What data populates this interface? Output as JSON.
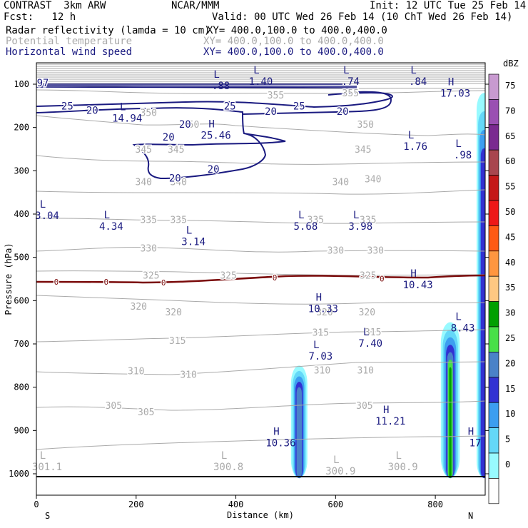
{
  "header": {
    "model": "CONTRAST  3km ARW",
    "org": "NCAR/MMM",
    "init": "Init: 12 UTC Tue 25 Feb 14",
    "fcst": "Fcst:   12 h",
    "valid": "Valid: 00 UTC Wed 26 Feb 14 (10 ChT Wed 26 Feb 14)",
    "fields": [
      {
        "name": "Radar reflectivity (lamda = 10 cm)",
        "xy": "XY= 400.0,100.0 to 400.0,400.0"
      },
      {
        "name": "Potential temperature",
        "xy": "XY= 400.0,100.0 to 400.0,400.0"
      },
      {
        "name": "Horizontal wind speed",
        "xy": "XY= 400.0,100.0 to 400.0,400.0"
      }
    ]
  },
  "chart_data": {
    "type": "cross-section",
    "xlabel": "Distance (km)",
    "ylabel": "Pressure (hPa)",
    "xlim": [
      0,
      900
    ],
    "ylim": [
      1010,
      55
    ],
    "x_ticks": [
      0,
      200,
      400,
      600,
      800
    ],
    "y_ticks": [
      100,
      200,
      300,
      400,
      500,
      600,
      700,
      800,
      900,
      1000
    ],
    "x_end_labels": {
      "left": "S",
      "right": "N"
    },
    "colorbar": {
      "unit": "dBZ",
      "levels": [
        "75",
        "70",
        "65",
        "60",
        "55",
        "50",
        "45",
        "40",
        "35",
        "30",
        "25",
        "20",
        "15",
        "10",
        "5",
        "0"
      ],
      "colors": [
        "#c89ad0",
        "#9a50b2",
        "#7a2a90",
        "#a8464e",
        "#c41818",
        "#ee1818",
        "#ff5a14",
        "#ff9640",
        "#ffc882",
        "#00a000",
        "#48e048",
        "#4a82c8",
        "#3232d2",
        "#3c9ef0",
        "#64d8f8",
        "#98faff",
        "#ffffff"
      ]
    },
    "theta_labels": [
      {
        "text": "355",
        "x": 480,
        "p": 125
      },
      {
        "text": "355",
        "x": 630,
        "p": 120
      },
      {
        "text": "350",
        "x": 225,
        "p": 165
      },
      {
        "text": "350",
        "x": 310,
        "p": 192
      },
      {
        "text": "350",
        "x": 660,
        "p": 192
      },
      {
        "text": "345",
        "x": 215,
        "p": 250
      },
      {
        "text": "345",
        "x": 280,
        "p": 250
      },
      {
        "text": "345",
        "x": 655,
        "p": 250
      },
      {
        "text": "340",
        "x": 215,
        "p": 325
      },
      {
        "text": "340",
        "x": 285,
        "p": 325
      },
      {
        "text": "340",
        "x": 610,
        "p": 325
      },
      {
        "text": "340",
        "x": 675,
        "p": 318
      },
      {
        "text": "335",
        "x": 225,
        "p": 412
      },
      {
        "text": "335",
        "x": 285,
        "p": 412
      },
      {
        "text": "335",
        "x": 560,
        "p": 412
      },
      {
        "text": "335",
        "x": 665,
        "p": 412
      },
      {
        "text": "330",
        "x": 225,
        "p": 478
      },
      {
        "text": "330",
        "x": 600,
        "p": 483
      },
      {
        "text": "330",
        "x": 680,
        "p": 483
      },
      {
        "text": "325",
        "x": 230,
        "p": 541
      },
      {
        "text": "325",
        "x": 385,
        "p": 541
      },
      {
        "text": "325",
        "x": 665,
        "p": 541
      },
      {
        "text": "320",
        "x": 205,
        "p": 613
      },
      {
        "text": "320",
        "x": 275,
        "p": 626
      },
      {
        "text": "320",
        "x": 578,
        "p": 626
      },
      {
        "text": "320",
        "x": 663,
        "p": 626
      },
      {
        "text": "315",
        "x": 283,
        "p": 692
      },
      {
        "text": "315",
        "x": 570,
        "p": 673
      },
      {
        "text": "315",
        "x": 675,
        "p": 672
      },
      {
        "text": "310",
        "x": 200,
        "p": 762
      },
      {
        "text": "310",
        "x": 305,
        "p": 770
      },
      {
        "text": "310",
        "x": 573,
        "p": 760
      },
      {
        "text": "310",
        "x": 660,
        "p": 760
      },
      {
        "text": "305",
        "x": 155,
        "p": 842
      },
      {
        "text": "305",
        "x": 220,
        "p": 857
      },
      {
        "text": "305",
        "x": 658,
        "p": 842
      }
    ],
    "wind_labels": [
      {
        "text": "25",
        "x": 62,
        "p": 150
      },
      {
        "text": "20",
        "x": 112,
        "p": 160
      },
      {
        "text": "25",
        "x": 388,
        "p": 150
      },
      {
        "text": "25",
        "x": 527,
        "p": 150
      },
      {
        "text": "20",
        "x": 470,
        "p": 163
      },
      {
        "text": "20",
        "x": 614,
        "p": 163
      },
      {
        "text": "20",
        "x": 298,
        "p": 192
      },
      {
        "text": "20",
        "x": 265,
        "p": 222
      },
      {
        "text": "20",
        "x": 355,
        "p": 296
      },
      {
        "text": "20",
        "x": 278,
        "p": 317
      },
      {
        "text": "97",
        "x": 10,
        "p": 97
      }
    ],
    "zero_labels": [
      {
        "text": "0",
        "x": 40,
        "p": 557
      },
      {
        "text": "0",
        "x": 140,
        "p": 557
      },
      {
        "text": "0",
        "x": 255,
        "p": 558
      },
      {
        "text": "0",
        "x": 478,
        "p": 547
      },
      {
        "text": "0",
        "x": 693,
        "p": 549
      }
    ],
    "extrema": [
      {
        "type": "L",
        "value": ".88",
        "x": 370,
        "p": 95
      },
      {
        "type": "L",
        "value": "1.40",
        "x": 450,
        "p": 85
      },
      {
        "type": "L",
        "value": ".74",
        "x": 630,
        "p": 85
      },
      {
        "type": "L",
        "value": ".84",
        "x": 765,
        "p": 85
      },
      {
        "type": "H",
        "value": "17.03",
        "x": 840,
        "p": 112
      },
      {
        "type": "L",
        "value": "14.94",
        "x": 182,
        "p": 170
      },
      {
        "type": "H",
        "value": "25.46",
        "x": 360,
        "p": 210
      },
      {
        "type": "L",
        "value": "1.76",
        "x": 760,
        "p": 235
      },
      {
        "type": "L",
        "value": ".98",
        "x": 855,
        "p": 255
      },
      {
        "type": "L",
        "value": "3.04",
        "x": 10,
        "p": 395
      },
      {
        "type": "L",
        "value": "4.34",
        "x": 150,
        "p": 420
      },
      {
        "type": "L",
        "value": "3.14",
        "x": 315,
        "p": 455
      },
      {
        "type": "L",
        "value": "5.68",
        "x": 540,
        "p": 420
      },
      {
        "type": "L",
        "value": "3.98",
        "x": 650,
        "p": 420
      },
      {
        "type": "H",
        "value": "10.43",
        "x": 765,
        "p": 555
      },
      {
        "type": "H",
        "value": "10.33",
        "x": 575,
        "p": 610
      },
      {
        "type": "L",
        "value": "8.43",
        "x": 855,
        "p": 655
      },
      {
        "type": "L",
        "value": "7.40",
        "x": 670,
        "p": 690
      },
      {
        "type": "L",
        "value": "7.03",
        "x": 570,
        "p": 720
      },
      {
        "type": "H",
        "value": "11.21",
        "x": 710,
        "p": 870
      },
      {
        "type": "H",
        "value": "10.36",
        "x": 490,
        "p": 920
      },
      {
        "type": "H",
        "value": "17",
        "x": 890,
        "p": 920
      },
      {
        "type": "L",
        "value": "301.1",
        "x": 20,
        "p": 975
      },
      {
        "type": "L",
        "value": "300.8",
        "x": 385,
        "p": 975
      },
      {
        "type": "L",
        "value": "300.9",
        "x": 610,
        "p": 985
      },
      {
        "type": "L",
        "value": "300.9",
        "x": 735,
        "p": 975
      }
    ],
    "reflectivity_cells": [
      {
        "x_center": 527,
        "p_top": 750,
        "p_bottom": 1010,
        "max_dbz": 20
      },
      {
        "x_center": 830,
        "p_top": 650,
        "p_bottom": 1010,
        "max_dbz": 30
      },
      {
        "x_center": 898,
        "p_top": 120,
        "p_bottom": 1010,
        "max_dbz": 15
      }
    ]
  }
}
